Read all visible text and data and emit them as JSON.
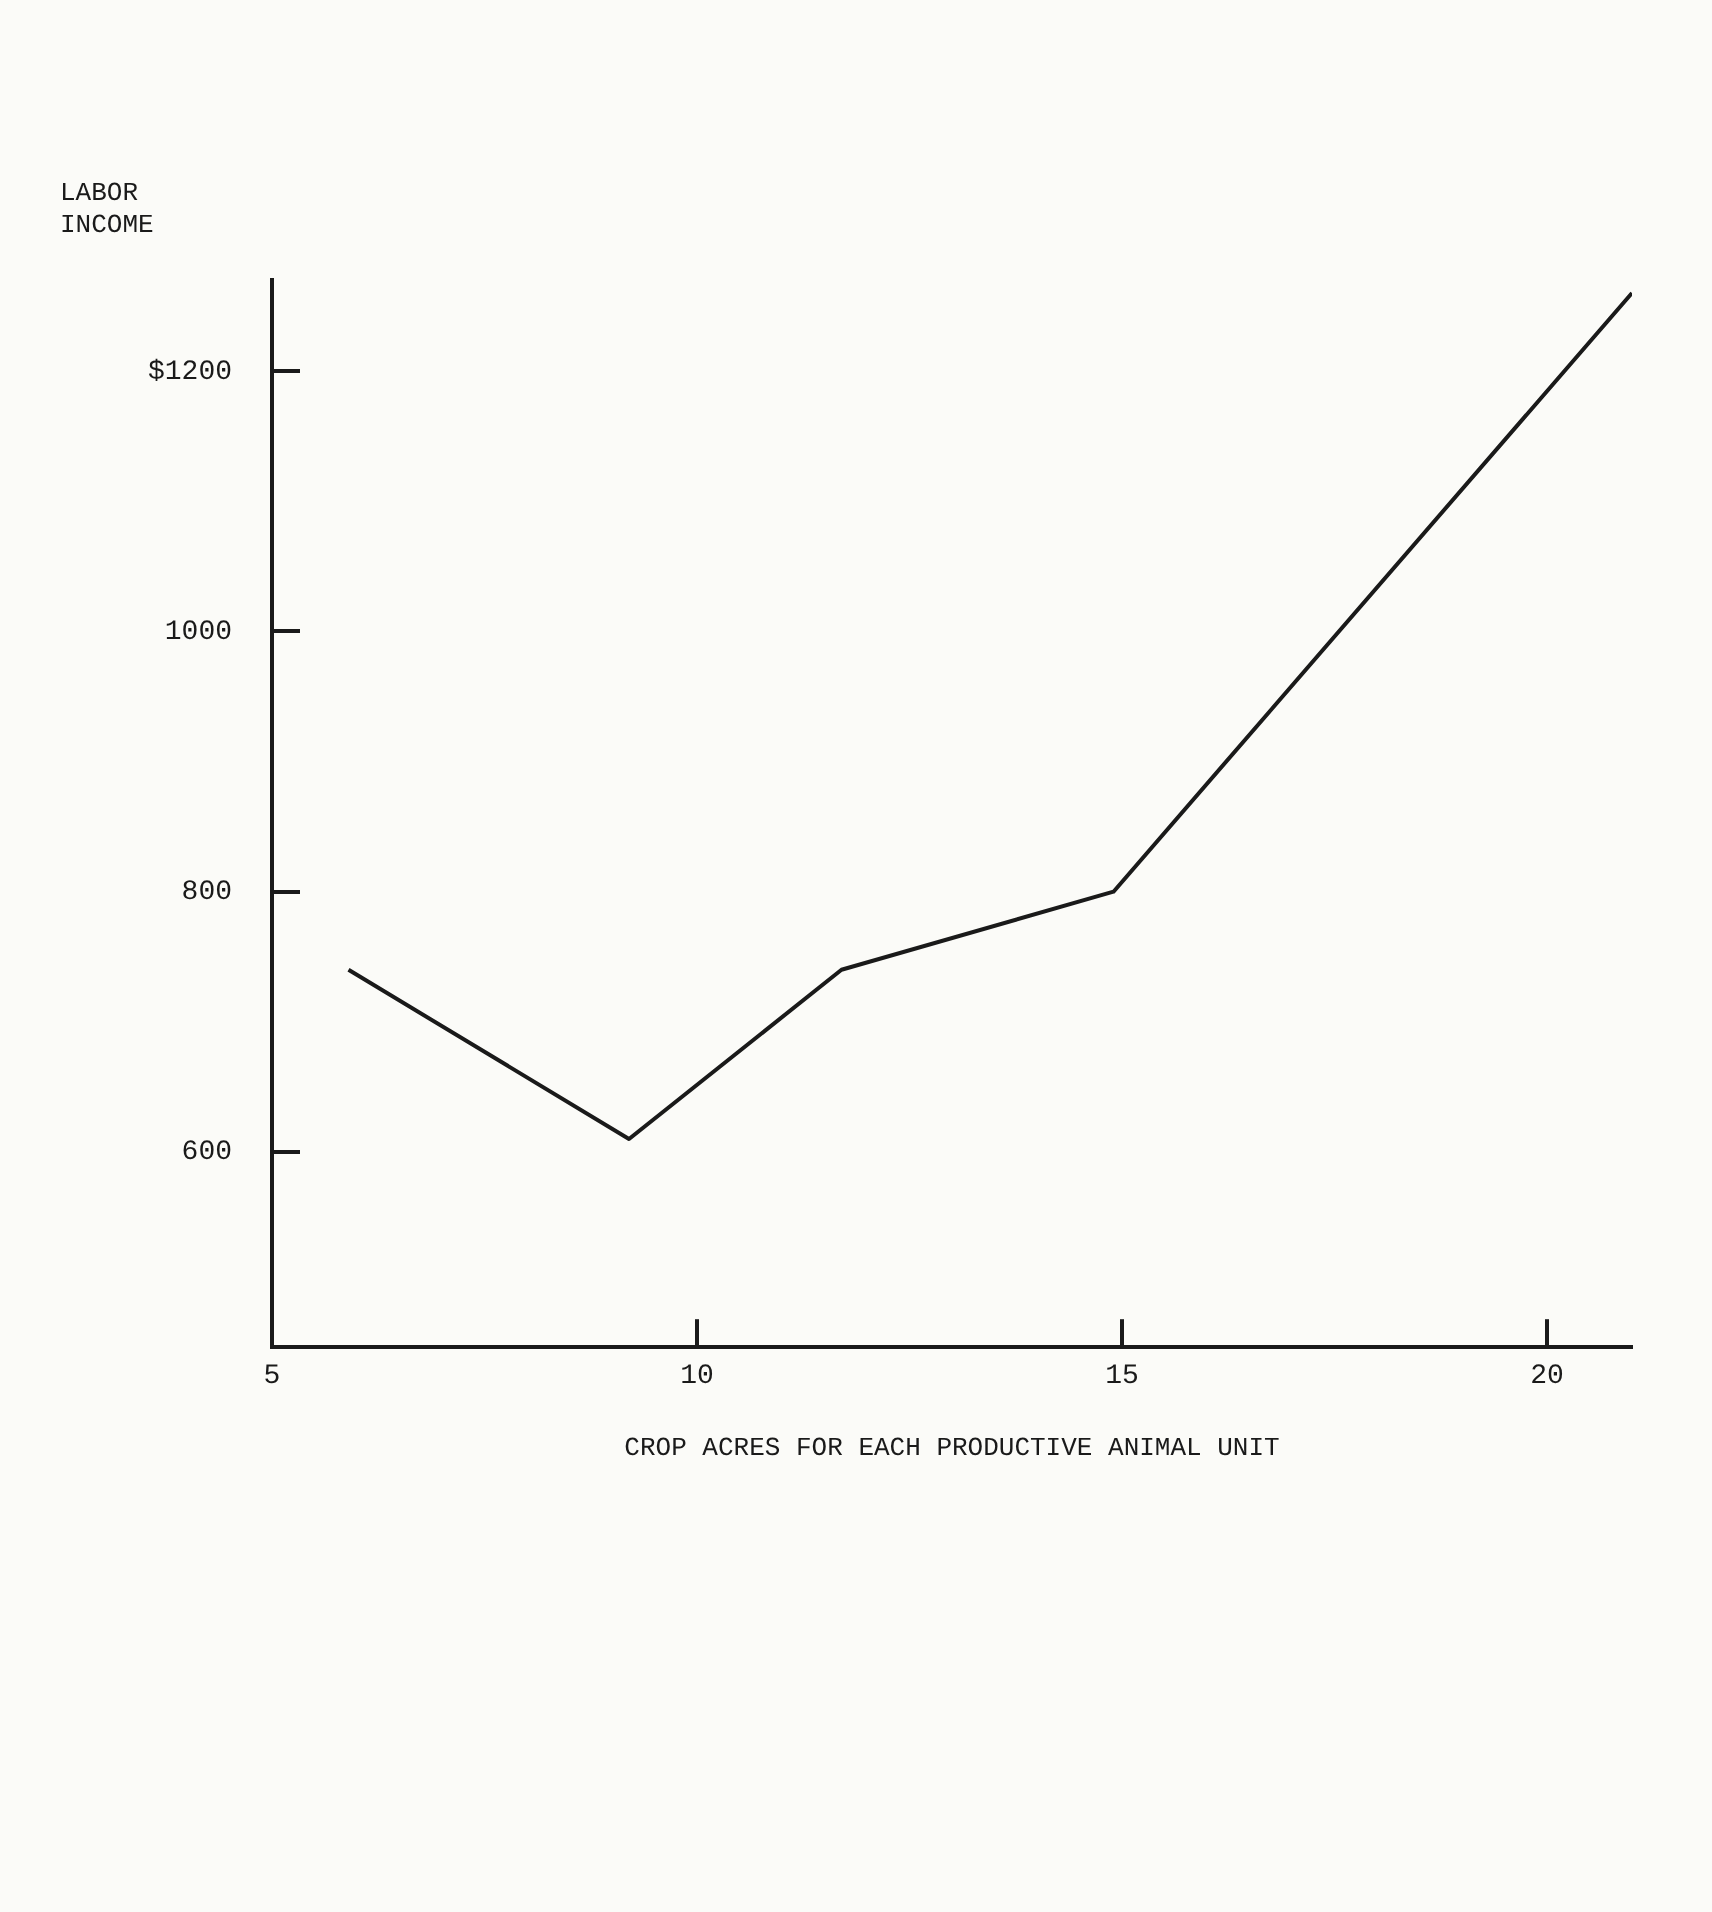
{
  "chart_data": {
    "type": "line",
    "xlabel": "CROP ACRES FOR EACH PRODUCTIVE ANIMAL UNIT",
    "ylabel": "LABOR INCOME",
    "x": [
      5.9,
      9.2,
      11.7,
      14.9,
      21
    ],
    "series": [
      {
        "color": "#1a1a1a",
        "values": [
          740,
          610,
          740,
          800,
          1260
        ]
      }
    ],
    "xlim": [
      5,
      21
    ],
    "ylim": [
      450,
      1270
    ],
    "xticks": [
      5,
      10,
      15,
      20
    ],
    "yticks": [
      600,
      800,
      1000,
      {
        "value": 1200,
        "label": "$1200"
      }
    ],
    "grid": false,
    "legend": false,
    "marker": "none",
    "line_style": "solid"
  }
}
